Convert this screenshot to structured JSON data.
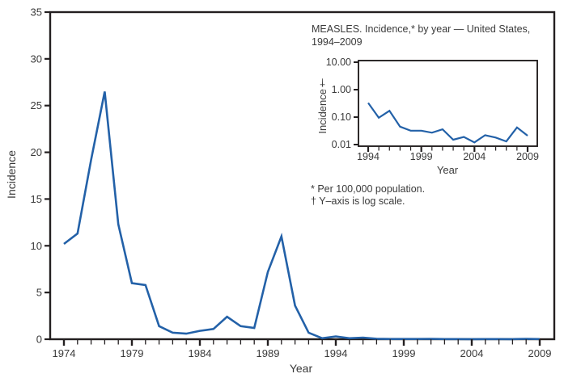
{
  "colors": {
    "line": "#2361a8",
    "axis": "#231f20",
    "text": "#3a3a3a",
    "background": "#ffffff"
  },
  "inset": {
    "title_lines": [
      "MEASLES. Incidence,* by year — United States,",
      "1994–2009"
    ],
    "footnotes": [
      "* Per 100,000 population.",
      "† Y–axis is log scale."
    ]
  },
  "chart_data": [
    {
      "type": "line",
      "title": "Measles incidence by year, United States, 1974-2009",
      "xlabel": "Year",
      "ylabel": "Incidence",
      "ylim": [
        0,
        35
      ],
      "xlim": [
        1974,
        2009
      ],
      "grid": false,
      "legend": "none",
      "y_ticks": [
        0,
        5,
        10,
        15,
        20,
        25,
        30,
        35
      ],
      "x_tick_labels": [
        1974,
        1979,
        1984,
        1989,
        1994,
        1999,
        2004,
        2009
      ],
      "x": [
        1974,
        1975,
        1976,
        1977,
        1978,
        1979,
        1980,
        1981,
        1982,
        1983,
        1984,
        1985,
        1986,
        1987,
        1988,
        1989,
        1990,
        1991,
        1992,
        1993,
        1994,
        1995,
        1996,
        1997,
        1998,
        1999,
        2000,
        2001,
        2002,
        2003,
        2004,
        2005,
        2006,
        2007,
        2008,
        2009
      ],
      "values": [
        10.2,
        11.3,
        19.2,
        26.5,
        12.3,
        6.0,
        5.8,
        1.4,
        0.7,
        0.6,
        0.9,
        1.1,
        2.4,
        1.4,
        1.2,
        7.2,
        11.0,
        3.6,
        0.7,
        0.1,
        0.3,
        0.1,
        0.17,
        0.05,
        0.03,
        0.03,
        0.03,
        0.04,
        0.02,
        0.02,
        0.01,
        0.02,
        0.02,
        0.01,
        0.04,
        0.02
      ]
    },
    {
      "type": "line",
      "title": "MEASLES. Incidence,* by year — United States, 1994–2009",
      "xlabel": "Year",
      "ylabel": "Incidence†",
      "y_scale": "log",
      "ylim": [
        0.01,
        10
      ],
      "xlim": [
        1994,
        2009
      ],
      "grid": false,
      "legend": "none",
      "y_ticks": [
        10,
        1,
        0.1,
        0.01
      ],
      "y_tick_labels": [
        "10.00",
        "1.00",
        "0.10",
        "0.01"
      ],
      "x_tick_labels": [
        1994,
        1999,
        2004,
        2009
      ],
      "x": [
        1994,
        1995,
        1996,
        1997,
        1998,
        1999,
        2000,
        2001,
        2002,
        2003,
        2004,
        2005,
        2006,
        2007,
        2008,
        2009
      ],
      "values": [
        0.33,
        0.095,
        0.17,
        0.045,
        0.032,
        0.032,
        0.027,
        0.036,
        0.015,
        0.019,
        0.012,
        0.022,
        0.018,
        0.013,
        0.042,
        0.021
      ]
    }
  ]
}
